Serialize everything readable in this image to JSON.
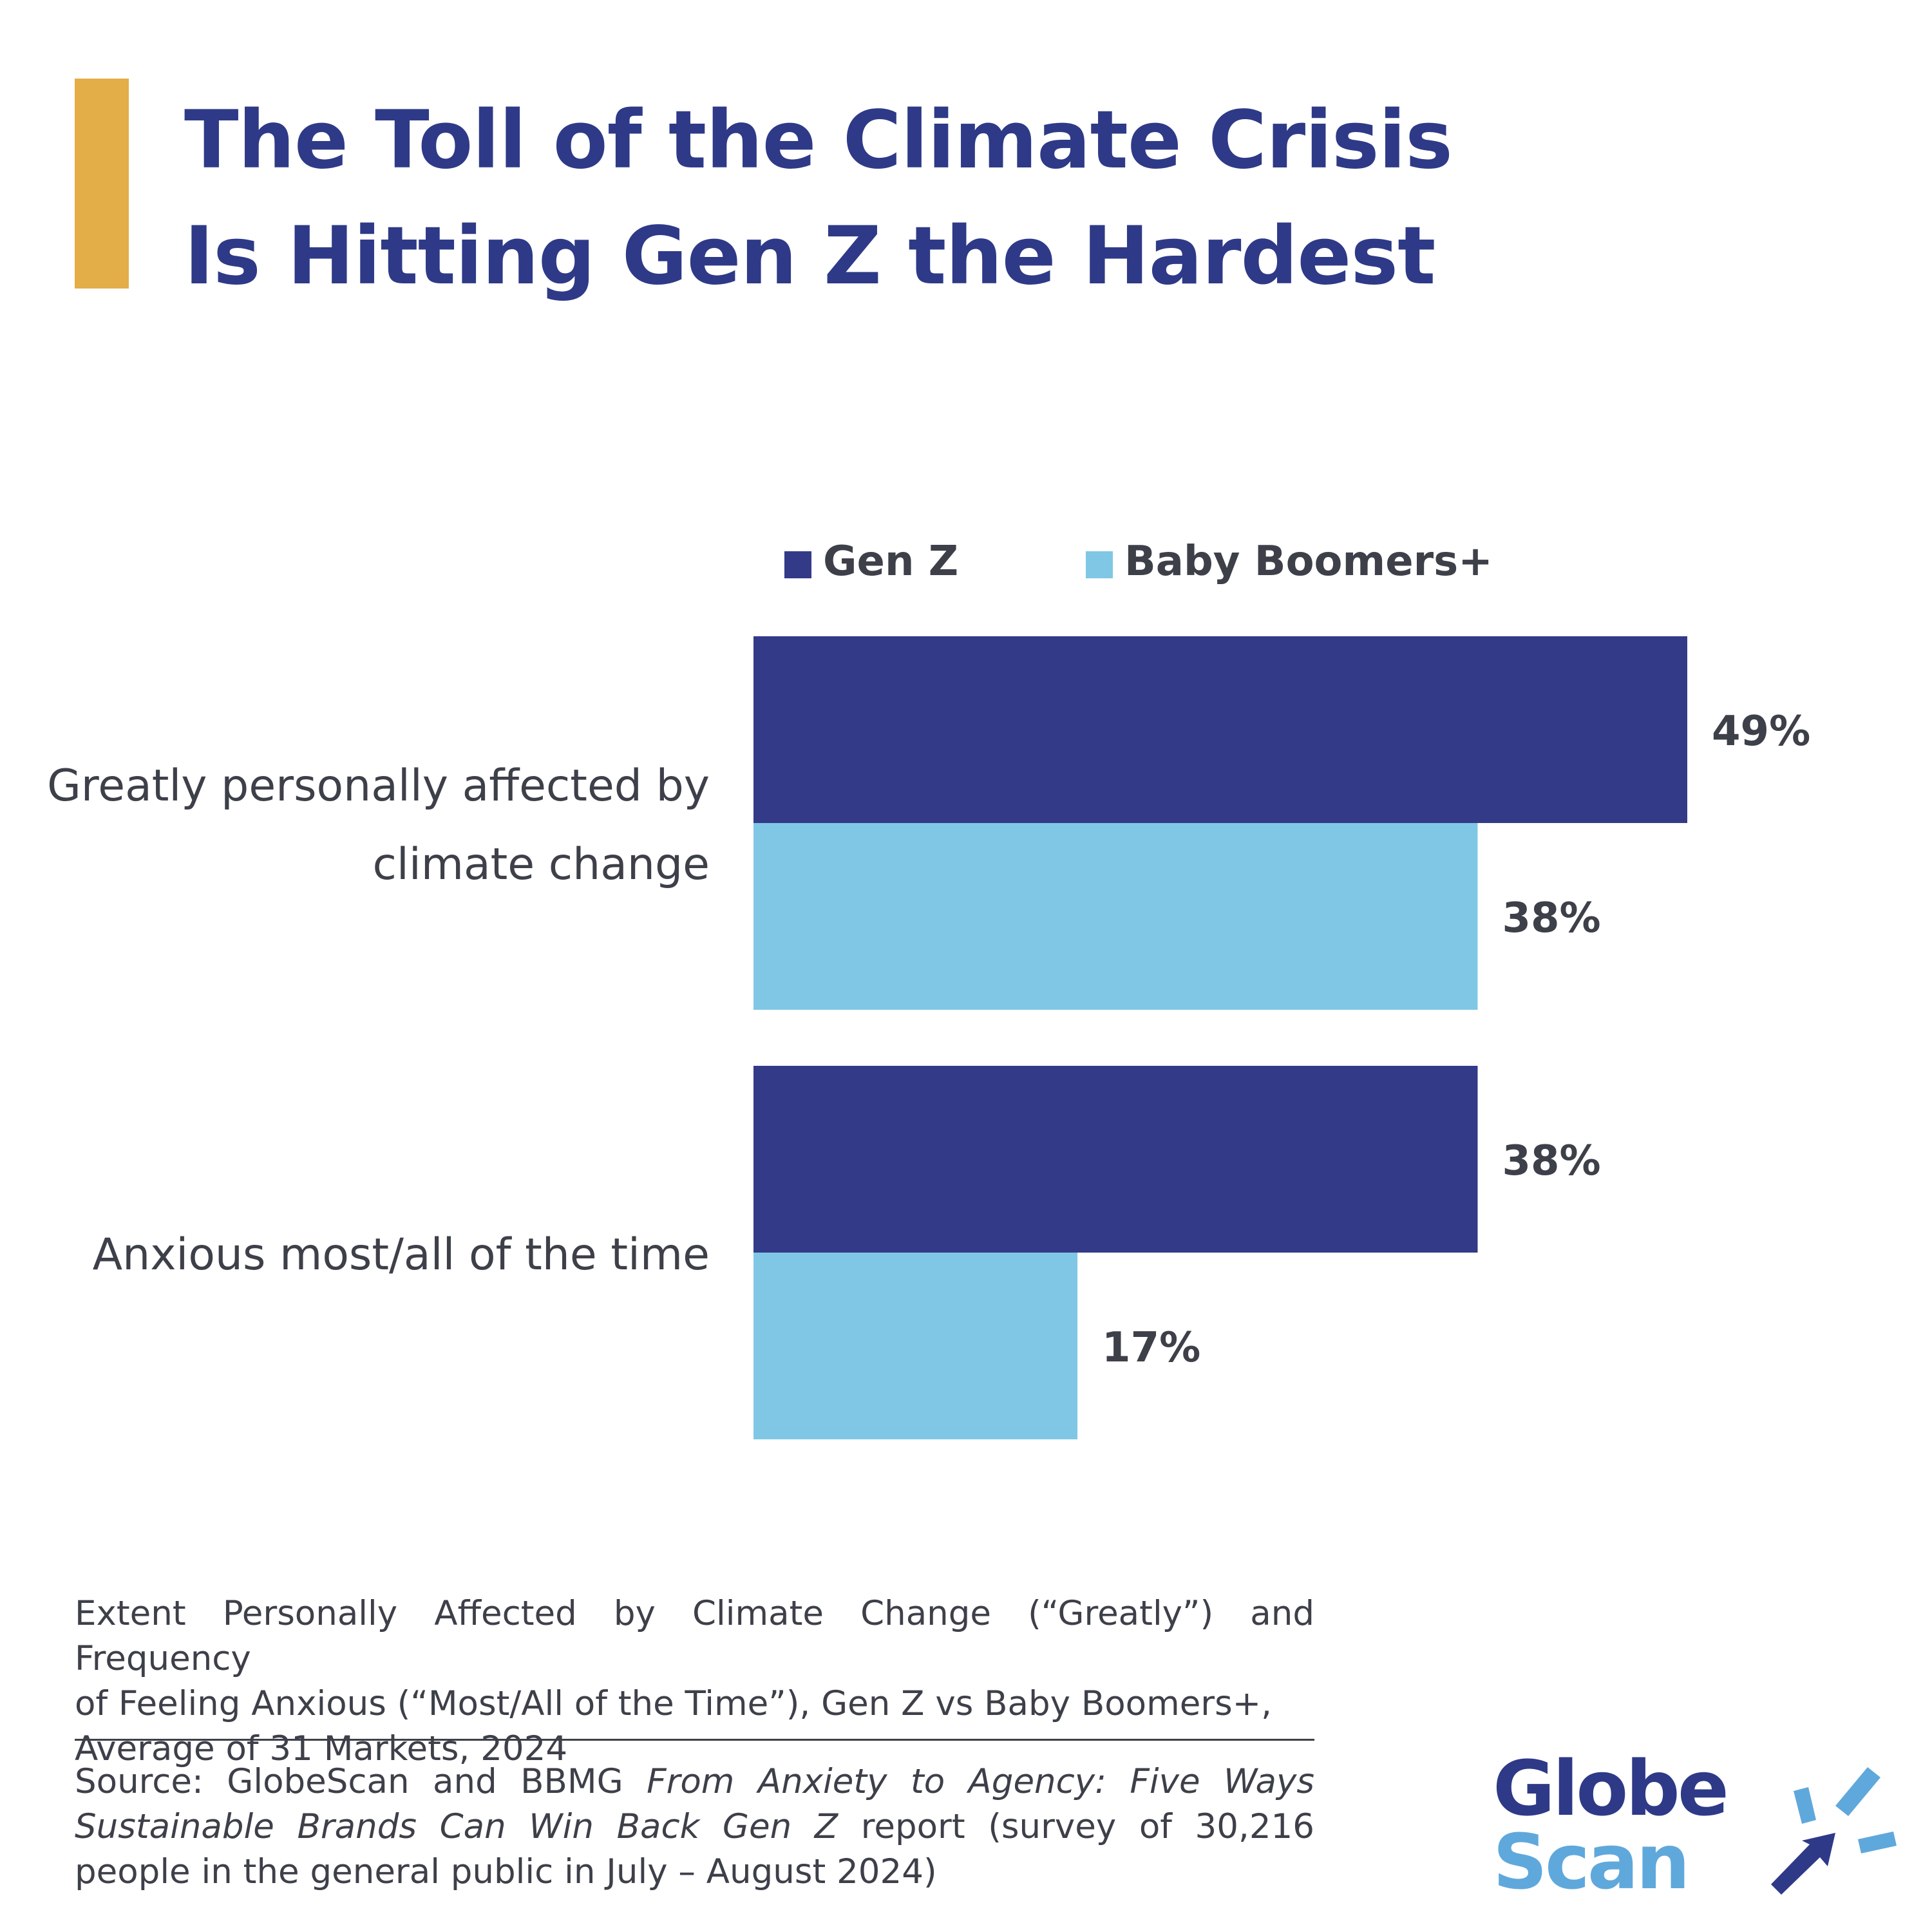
{
  "title": {
    "line1": "The Toll of the Climate Crisis",
    "line2": "Is Hitting Gen Z the Hardest"
  },
  "colors": {
    "accent_bar": "#e3ad48",
    "title": "#2e3a87",
    "gen_z": "#333a88",
    "baby_boomers": "#80c7e5",
    "text": "#3d4049",
    "logo_globe": "#2e3a87",
    "logo_scan": "#5fa8dc"
  },
  "chart_data": {
    "type": "bar",
    "orientation": "horizontal",
    "categories": [
      [
        "Greatly personally affected by",
        "climate change"
      ],
      [
        "Anxious most/all of the time"
      ]
    ],
    "series": [
      {
        "name": "Gen Z",
        "values": [
          49,
          38
        ],
        "labels": [
          "49%",
          "38%"
        ]
      },
      {
        "name": "Baby Boomers+",
        "values": [
          38,
          17
        ],
        "labels": [
          "38%",
          "17%"
        ]
      }
    ],
    "legend": {
      "position": "top"
    },
    "xlim": [
      0,
      49
    ],
    "grid": false
  },
  "footer": {
    "caption_lines": [
      "Extent Personally Affected by Climate Change (“Greatly”) and Frequency",
      "of Feeling Anxious (“Most/All of the Time”), Gen Z vs Baby Boomers+,",
      "Average of 31 Markets, 2024"
    ],
    "source_prefix": "Source: GlobeScan and BBMG ",
    "source_report_title": "From Anxiety to Agency: Five Ways Sustainable  Brands Can Win Back Gen Z",
    "source_suffix": " report (survey of 30,216 people in the general public in July – August 2024)"
  },
  "logo": {
    "word_top": "Globe",
    "word_bottom": "Scan"
  }
}
